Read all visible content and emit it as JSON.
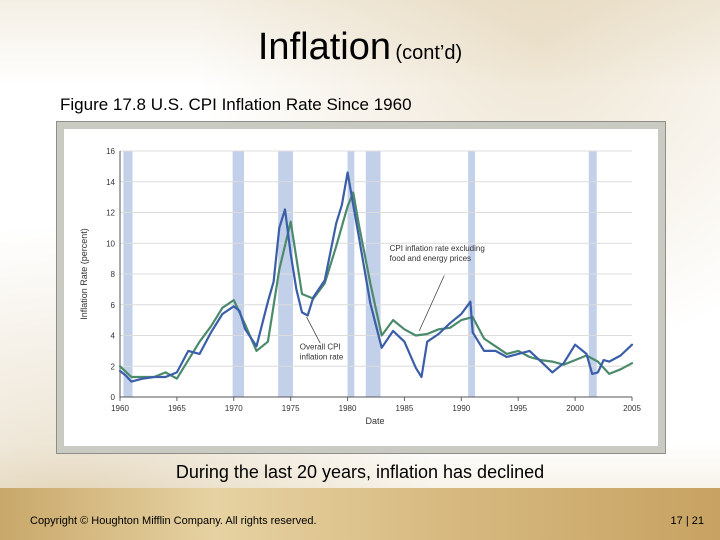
{
  "slide": {
    "title_main": "Inflation",
    "title_sub": "(cont’d)",
    "figure_caption": "Figure 17.8 U.S. CPI Inflation Rate Since 1960",
    "summary": "During the last 20 years, inflation has declined",
    "copyright": "Copyright © Houghton Mifflin Company. All rights reserved.",
    "page_number": "17 | 21"
  },
  "chart_data": {
    "type": "line",
    "title": "",
    "xlabel": "Date",
    "ylabel": "Inflation Rate (percent)",
    "xlim": [
      1960,
      2005
    ],
    "ylim": [
      0,
      16
    ],
    "x_ticks": [
      1960,
      1965,
      1970,
      1975,
      1980,
      1985,
      1990,
      1995,
      2000,
      2005
    ],
    "y_ticks": [
      0,
      2,
      4,
      6,
      8,
      10,
      12,
      14,
      16
    ],
    "recessions": [
      [
        1960.3,
        1961.1
      ],
      [
        1969.9,
        1970.9
      ],
      [
        1973.9,
        1975.2
      ],
      [
        1980.0,
        1980.6
      ],
      [
        1981.6,
        1982.9
      ],
      [
        1990.6,
        1991.2
      ],
      [
        2001.2,
        2001.9
      ]
    ],
    "annotations": [
      {
        "text_lines": [
          "CPI inflation rate excluding",
          "food and energy prices"
        ],
        "series": "Core CPI"
      },
      {
        "text_lines": [
          "Overall CPI",
          "inflation rate"
        ],
        "series": "Overall CPI"
      }
    ],
    "series": [
      {
        "name": "Overall CPI",
        "color": "#3b5ea8",
        "x": [
          1960,
          1960.5,
          1961,
          1962,
          1963,
          1964,
          1965,
          1966,
          1967,
          1968,
          1969,
          1970,
          1970.5,
          1971,
          1972,
          1973,
          1973.5,
          1974,
          1974.5,
          1975,
          1975.5,
          1976,
          1976.5,
          1977,
          1978,
          1979,
          1979.5,
          1980,
          1980.5,
          1981,
          1982,
          1983,
          1984,
          1985,
          1986,
          1986.5,
          1987,
          1988,
          1989,
          1990,
          1990.8,
          1991,
          1992,
          1993,
          1994,
          1995,
          1996,
          1997,
          1998,
          1999,
          2000,
          2001,
          2001.5,
          2002,
          2002.5,
          2003,
          2004,
          2005
        ],
        "values": [
          1.7,
          1.4,
          1.0,
          1.2,
          1.3,
          1.3,
          1.6,
          3.0,
          2.8,
          4.2,
          5.4,
          5.9,
          5.6,
          4.4,
          3.3,
          6.2,
          7.5,
          11.0,
          12.2,
          9.3,
          7.0,
          5.5,
          5.3,
          6.5,
          7.6,
          11.3,
          12.5,
          14.6,
          12.5,
          10.4,
          6.1,
          3.2,
          4.3,
          3.6,
          1.9,
          1.3,
          3.6,
          4.1,
          4.8,
          5.4,
          6.2,
          4.2,
          3.0,
          3.0,
          2.6,
          2.8,
          3.0,
          2.3,
          1.6,
          2.2,
          3.4,
          2.8,
          1.5,
          1.6,
          2.4,
          2.3,
          2.7,
          3.4
        ]
      },
      {
        "name": "Core CPI",
        "color": "#4c8a6c",
        "x": [
          1960,
          1961,
          1962,
          1963,
          1964,
          1965,
          1966,
          1967,
          1968,
          1969,
          1970,
          1971,
          1972,
          1973,
          1974,
          1975,
          1976,
          1977,
          1978,
          1979,
          1980,
          1980.5,
          1981,
          1982,
          1983,
          1984,
          1985,
          1986,
          1987,
          1988,
          1989,
          1990,
          1991,
          1992,
          1993,
          1994,
          1995,
          1996,
          1997,
          1998,
          1999,
          2000,
          2001,
          2002,
          2003,
          2004,
          2005
        ],
        "values": [
          2.0,
          1.3,
          1.3,
          1.3,
          1.6,
          1.2,
          2.4,
          3.6,
          4.6,
          5.8,
          6.3,
          4.7,
          3.0,
          3.6,
          8.3,
          11.4,
          6.7,
          6.4,
          7.4,
          9.8,
          12.4,
          13.3,
          11.2,
          7.4,
          4.0,
          5.0,
          4.4,
          4.0,
          4.1,
          4.4,
          4.5,
          5.0,
          5.2,
          3.8,
          3.3,
          2.8,
          3.0,
          2.6,
          2.4,
          2.3,
          2.1,
          2.4,
          2.7,
          2.3,
          1.5,
          1.8,
          2.2
        ]
      }
    ]
  }
}
